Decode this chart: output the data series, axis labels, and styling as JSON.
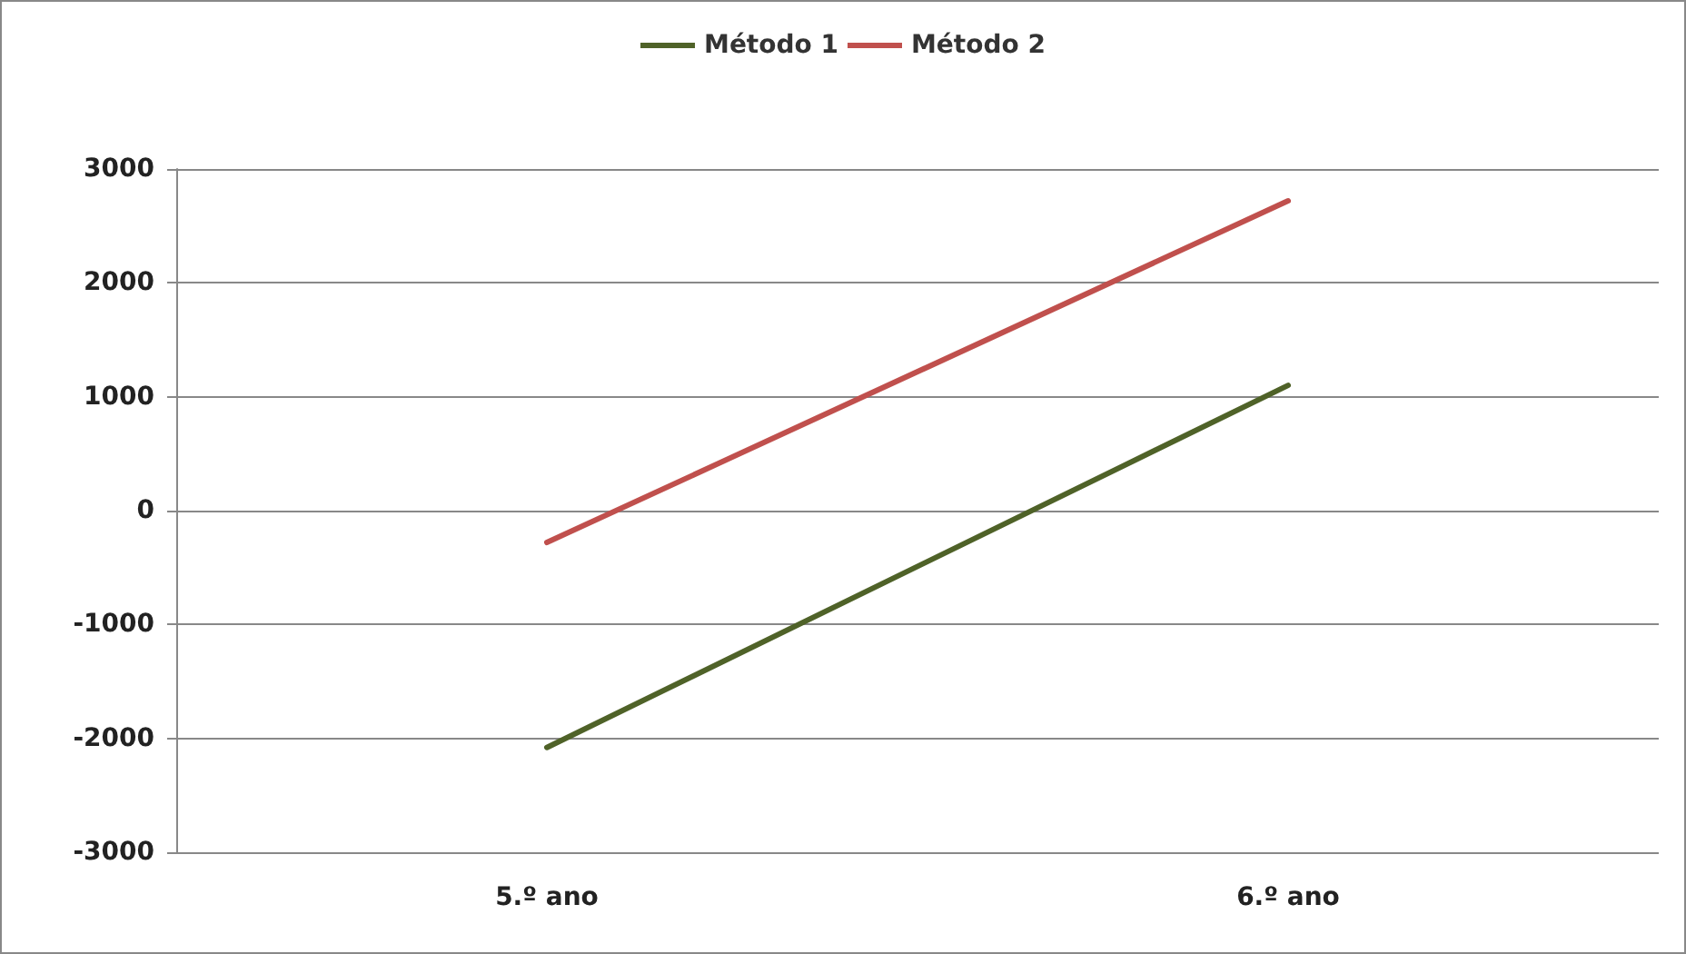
{
  "chart_data": {
    "type": "line",
    "categories": [
      "5.º ano",
      "6.º ano"
    ],
    "series": [
      {
        "name": "Método 1",
        "color": "#4f6228",
        "values": [
          -2080,
          1100
        ]
      },
      {
        "name": "Método 2",
        "color": "#c0504d",
        "values": [
          -280,
          2720
        ]
      }
    ],
    "ylim": [
      -3000,
      3000
    ],
    "yticks": [
      -3000,
      -2000,
      -1000,
      0,
      1000,
      2000,
      3000
    ],
    "grid": "y",
    "legend": "top",
    "marker": "none"
  }
}
